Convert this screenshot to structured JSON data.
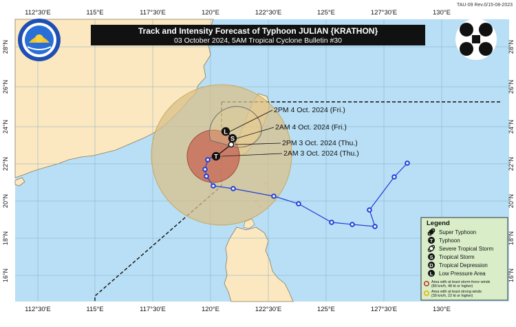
{
  "header": {
    "revision": "TAU-09 Rev.0/15-08-2023",
    "title": "Track and Intensity Forecast of Typhoon JULIAN {KRATHON}",
    "subtitle": "03 October 2024, 5AM Tropical Cyclone Bulletin #30"
  },
  "axes": {
    "lon_labels": [
      "112°30'E",
      "115°E",
      "117°30'E",
      "120°E",
      "122°30'E",
      "125°E",
      "127°30'E",
      "130°E"
    ],
    "lat_labels": [
      "28°N",
      "26°N",
      "24°N",
      "22°N",
      "20°N",
      "18°N",
      "16°N"
    ]
  },
  "forecast_labels": [
    "2PM 4 Oct. 2024 (Fri.)",
    "2AM 4 Oct. 2024 (Fri.)",
    "2PM 3 Oct. 2024 (Thu.)",
    "2AM 3 Oct. 2024 (Thu.)"
  ],
  "symbols": {
    "typhoon": "T",
    "tropical_storm": "S",
    "low_pressure": "L",
    "depression": "D"
  },
  "legend": {
    "title": "Legend",
    "items": [
      {
        "label": "Super Typhoon",
        "icon": "super-typhoon-icon"
      },
      {
        "label": "Typhoon",
        "icon": "typhoon-icon"
      },
      {
        "label": "Severe Tropical Storm",
        "icon": "severe-tropical-storm-icon"
      },
      {
        "label": "Tropical Storm",
        "icon": "tropical-storm-icon"
      },
      {
        "label": "Tropical Depression",
        "icon": "tropical-depression-icon"
      },
      {
        "label": "Low Pressure Area",
        "icon": "low-pressure-area-icon"
      }
    ],
    "wind_areas": [
      {
        "line1": "Area with at least storm-force winds",
        "line2": "(89 km/h, 48 kt or higher)",
        "color": "#c0392b"
      },
      {
        "line1": "Area with at least strong winds",
        "line2": "(39 km/h, 22 kt or higher)",
        "color": "#e6b800"
      }
    ]
  },
  "colors": {
    "sea": "#b8dff5",
    "land": "#fbe8c0",
    "track": "#1f3bd6",
    "strong_winds": "#d9c08a",
    "storm_force": "#c9705a"
  }
}
